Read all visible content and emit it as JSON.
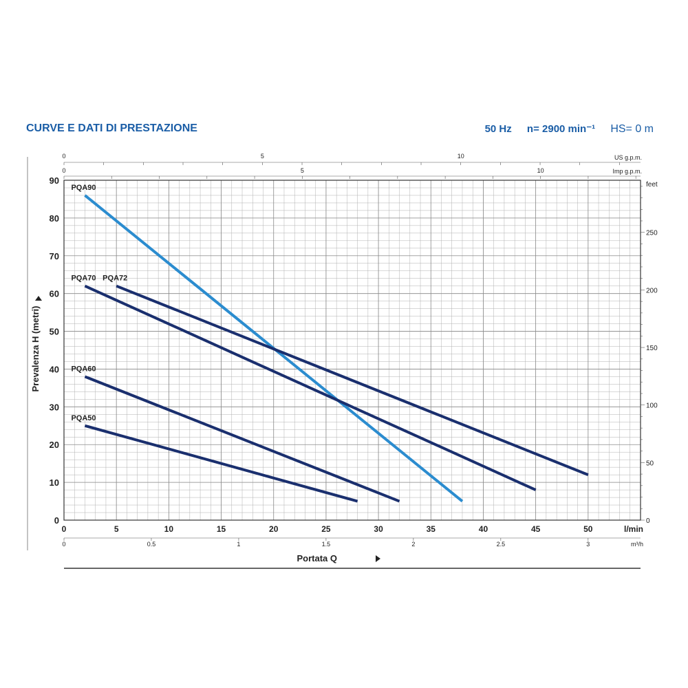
{
  "header": {
    "title": "CURVE E DATI DI PRESTAZIONE",
    "frequency": "50 Hz",
    "speed": "n= 2900 min⁻¹",
    "hs": "HS= 0 m"
  },
  "colors": {
    "title": "#1a5da6",
    "series_dark": "#1a2f6e",
    "series_light": "#2b8ccf",
    "grid": "#b0b0b0"
  },
  "chart_data": {
    "type": "line",
    "xlabel": "Portata Q",
    "ylabel": "Prevalenza H (metri)",
    "x_unit": "l/min",
    "xlim": [
      0,
      55
    ],
    "ylim": [
      0,
      90
    ],
    "x_ticks": [
      0,
      5,
      10,
      15,
      20,
      25,
      30,
      35,
      40,
      45,
      50
    ],
    "y_ticks": [
      0,
      10,
      20,
      30,
      40,
      50,
      60,
      70,
      80,
      90
    ],
    "grid": true,
    "secondary_axes": {
      "m3h": {
        "unit": "m³/h",
        "ticks": [
          0,
          0.5,
          1,
          1.5,
          2,
          2.5,
          3
        ],
        "labels": [
          "0",
          "0.5",
          "1",
          "1.5",
          "2",
          "2.5",
          "3"
        ]
      },
      "us_gpm": {
        "unit": "US g.p.m.",
        "ticks": [
          0,
          5,
          10
        ],
        "labels": [
          "0",
          "5",
          "10"
        ]
      },
      "imp_gpm": {
        "unit": "Imp g.p.m.",
        "ticks": [
          0,
          5,
          10
        ],
        "labels": [
          "0",
          "5",
          "10"
        ]
      },
      "feet": {
        "unit": "feet",
        "ticks": [
          0,
          50,
          100,
          150,
          200,
          250
        ],
        "labels": [
          "0",
          "50",
          "100",
          "150",
          "200",
          "250"
        ]
      }
    },
    "series": [
      {
        "name": "PQA90",
        "color": "#2b8ccf",
        "x": [
          2,
          38
        ],
        "y": [
          86,
          5
        ]
      },
      {
        "name": "PQA70",
        "color": "#1a2f6e",
        "x": [
          2,
          45
        ],
        "y": [
          62,
          8
        ]
      },
      {
        "name": "PQA72",
        "color": "#1a2f6e",
        "x": [
          5,
          50
        ],
        "y": [
          62,
          12
        ]
      },
      {
        "name": "PQA60",
        "color": "#1a2f6e",
        "x": [
          2,
          32
        ],
        "y": [
          38,
          5
        ]
      },
      {
        "name": "PQA50",
        "color": "#1a2f6e",
        "x": [
          2,
          28
        ],
        "y": [
          25,
          5
        ]
      }
    ]
  }
}
